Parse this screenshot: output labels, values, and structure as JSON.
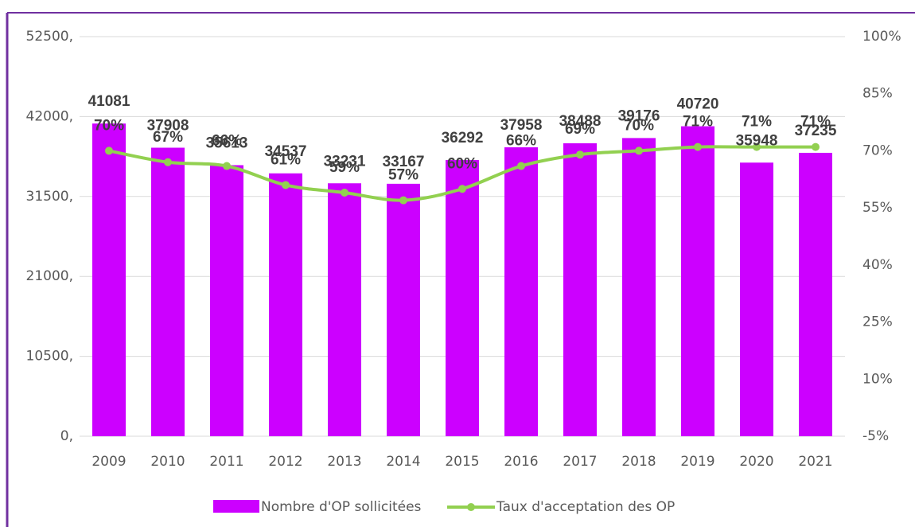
{
  "chart_data": {
    "type": "bar_line",
    "categories": [
      "2009",
      "2010",
      "2011",
      "2012",
      "2013",
      "2014",
      "2015",
      "2016",
      "2017",
      "2018",
      "2019",
      "2020",
      "2021"
    ],
    "series": [
      {
        "name": "Nombre d'OP sollicitées",
        "color": "#cc00ff",
        "type": "bar",
        "values": [
          41081,
          37908,
          35613,
          34537,
          33231,
          33167,
          36292,
          37958,
          38488,
          39176,
          40720,
          35948,
          37235
        ]
      },
      {
        "name": "Taux d'acceptation des OP",
        "color": "#92d050",
        "type": "line",
        "axis": "y2",
        "values": [
          70,
          67,
          66,
          61,
          59,
          57,
          60,
          66,
          69,
          70,
          71,
          71,
          71
        ],
        "value_labels": [
          "70%",
          "67%",
          "66%",
          "61%",
          "59%",
          "57%",
          "60%",
          "66%",
          "69%",
          "70%",
          "71%",
          "71%",
          "71%"
        ]
      }
    ],
    "ylim": [
      0,
      52500
    ],
    "yticks": [
      {
        "value": 0,
        "label": "0,"
      },
      {
        "value": 10500,
        "label": "10500,"
      },
      {
        "value": 21000,
        "label": "21000,"
      },
      {
        "value": 31500,
        "label": "31500,"
      },
      {
        "value": 42000,
        "label": "42000,"
      },
      {
        "value": 52500,
        "label": "52500,"
      }
    ],
    "y2lim": [
      -5,
      100
    ],
    "y2ticks": [
      {
        "value": -5,
        "label": "-5%"
      },
      {
        "value": 10,
        "label": "10%"
      },
      {
        "value": 25,
        "label": "25%"
      },
      {
        "value": 40,
        "label": "40%"
      },
      {
        "value": 55,
        "label": "55%"
      },
      {
        "value": 70,
        "label": "70%"
      },
      {
        "value": 85,
        "label": "85%"
      },
      {
        "value": 100,
        "label": "100%"
      }
    ],
    "grid": true,
    "legend": "bottom"
  }
}
